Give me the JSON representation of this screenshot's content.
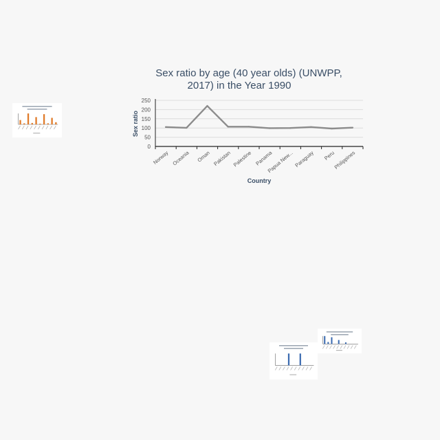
{
  "chart_data": {
    "type": "line",
    "title": "Sex ratio by age (40 year olds) (UNWPP, 2017) in the Year 1990",
    "title_lines": [
      "Sex ratio by age (40 year olds) (UNWPP,",
      "2017) in the Year 1990"
    ],
    "xlabel": "Country",
    "ylabel": "Sex ratio",
    "ylim": [
      0,
      250
    ],
    "yticks": [
      0,
      50,
      100,
      150,
      200,
      250
    ],
    "categories": [
      "Norway",
      "Oceania",
      "Oman",
      "Pakistan",
      "Palestine",
      "Panama",
      "Papua New...",
      "Paraguay",
      "Peru",
      "Philippines"
    ],
    "series": [
      {
        "values": [
          105,
          101,
          220,
          107,
          107,
          99,
          100,
          105,
          97,
          102
        ]
      }
    ],
    "line_color": "#8c8c8c",
    "grid": true
  },
  "thumbnails": [
    {
      "id": "thumb-left",
      "type": "bar",
      "bar_color": "#e07b2a",
      "values": [
        12,
        3,
        30,
        4,
        20,
        2,
        28,
        3,
        18,
        6
      ]
    },
    {
      "id": "thumb-br1",
      "type": "bar",
      "bar_color": "#3b6bb0",
      "values": [
        0,
        0,
        0,
        40,
        0,
        0,
        40,
        0,
        0,
        0
      ]
    },
    {
      "id": "thumb-br2",
      "type": "bar",
      "bar_color": "#3b6bb0",
      "values": [
        40,
        10,
        34,
        0,
        20,
        0,
        8,
        0,
        0,
        0
      ]
    }
  ]
}
